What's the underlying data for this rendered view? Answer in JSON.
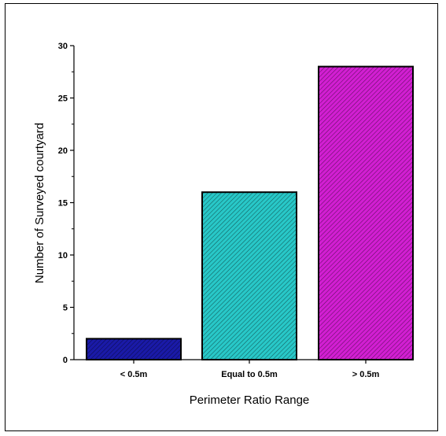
{
  "chart_data": {
    "type": "bar",
    "categories": [
      "< 0.5m",
      "Equal to 0.5m",
      "> 0.5m"
    ],
    "values": [
      2,
      16,
      28
    ],
    "title": "",
    "xlabel": "Perimeter Ratio Range",
    "ylabel": "Number of Surveyed courtyard",
    "ylim": [
      0,
      30
    ],
    "yticks": [
      0,
      5,
      10,
      15,
      20,
      25,
      30
    ],
    "grid": false,
    "bar_colors": [
      "#1a1aa8",
      "#28c8c8",
      "#d21fd2"
    ],
    "pattern": "diagonal-hatch"
  }
}
